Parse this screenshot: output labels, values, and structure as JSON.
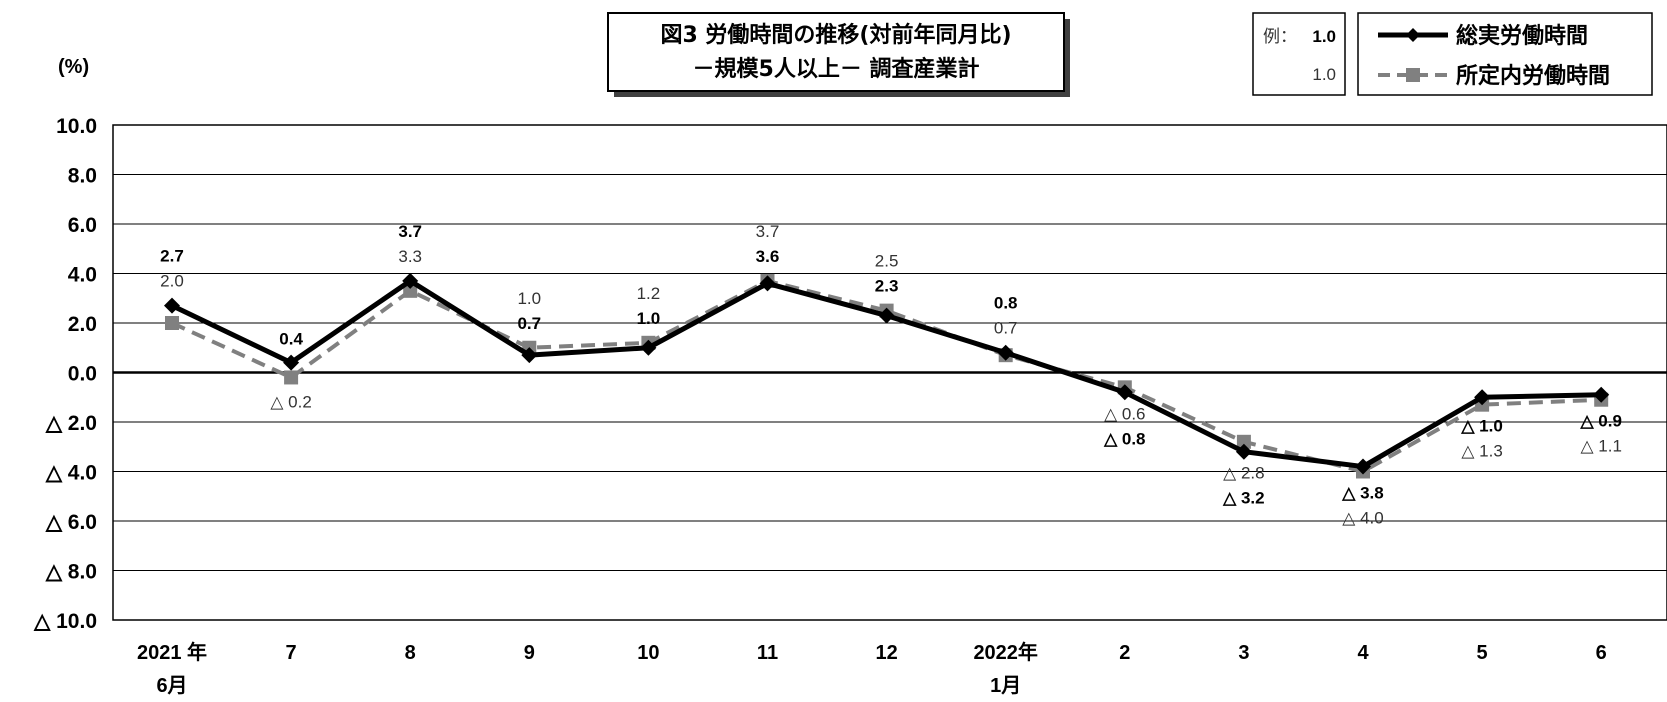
{
  "chart_data": {
    "type": "line",
    "title_line1": "図3 労働時間の推移(対前年同月比)",
    "title_line2": "－規模5人以上－ 調査産業計",
    "y_unit_label": "(%)",
    "ylim": [
      -10,
      10
    ],
    "y_ticks": [
      10,
      8,
      6,
      4,
      2,
      0,
      -2,
      -4,
      -6,
      -8,
      -10
    ],
    "y_tick_labels": [
      "10.0",
      "8.0",
      "6.0",
      "4.0",
      "2.0",
      "0.0",
      "△ 2.0",
      "△ 4.0",
      "△ 6.0",
      "△ 8.0",
      "△ 10.0"
    ],
    "categories": [
      {
        "line1": "2021 年",
        "line2": "6月"
      },
      {
        "line1": "7",
        "line2": ""
      },
      {
        "line1": "8",
        "line2": ""
      },
      {
        "line1": "9",
        "line2": ""
      },
      {
        "line1": "10",
        "line2": ""
      },
      {
        "line1": "11",
        "line2": ""
      },
      {
        "line1": "12",
        "line2": ""
      },
      {
        "line1": "2022年",
        "line2": "1月"
      },
      {
        "line1": "2",
        "line2": ""
      },
      {
        "line1": "3",
        "line2": ""
      },
      {
        "line1": "4",
        "line2": ""
      },
      {
        "line1": "5",
        "line2": ""
      },
      {
        "line1": "6",
        "line2": ""
      }
    ],
    "series": [
      {
        "name": "総実労働時間",
        "color": "#000000",
        "marker": "diamond",
        "values": [
          2.7,
          0.4,
          3.7,
          0.7,
          1.0,
          3.6,
          2.3,
          0.8,
          -0.8,
          -3.2,
          -3.8,
          -1.0,
          -0.9
        ],
        "labels": [
          "2.7",
          "0.4",
          "3.7",
          "0.7",
          "1.0",
          "3.6",
          "2.3",
          "0.8",
          "△ 0.8",
          "△ 3.2",
          "△ 3.8",
          "△ 1.0",
          "△ 0.9"
        ]
      },
      {
        "name": "所定内労働時間",
        "color": "#808080",
        "marker": "square",
        "values": [
          2.0,
          -0.2,
          3.3,
          1.0,
          1.2,
          3.7,
          2.5,
          0.7,
          -0.6,
          -2.8,
          -4.0,
          -1.3,
          -1.1
        ],
        "labels": [
          "2.0",
          "△ 0.2",
          "3.3",
          "1.0",
          "1.2",
          "3.7",
          "2.5",
          "0.7",
          "△ 0.6",
          "△ 2.8",
          "△ 4.0",
          "△ 1.3",
          "△ 1.1"
        ]
      }
    ],
    "legend_example": {
      "prefix": "例：",
      "bold_value": "1.0",
      "light_value": "1.0"
    },
    "legend_position": "top-right",
    "grid": true
  }
}
